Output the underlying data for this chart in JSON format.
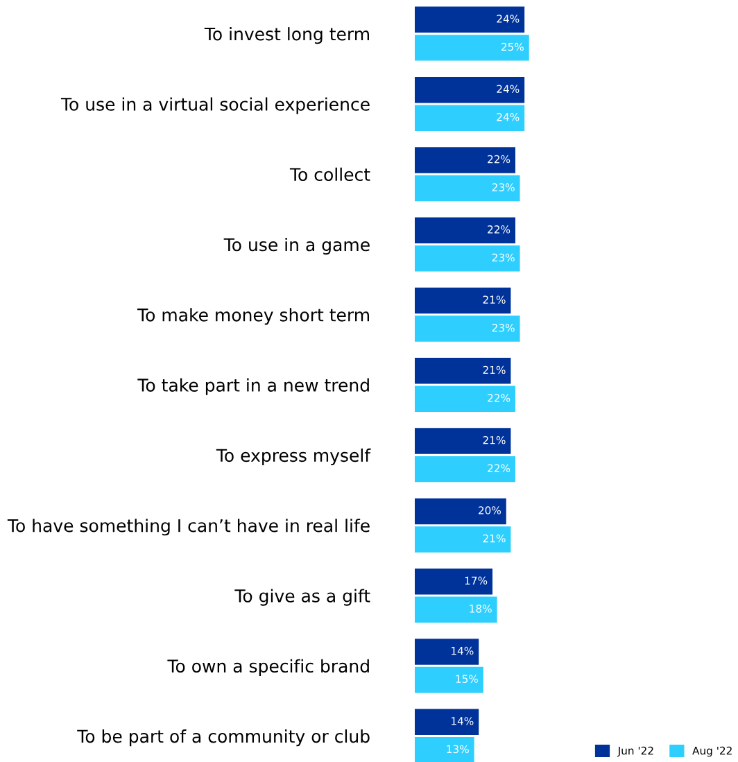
{
  "chart_data": {
    "type": "bar",
    "orientation": "horizontal",
    "categories": [
      "To invest long term",
      "To use in a virtual social experience",
      "To collect",
      "To use in a game",
      "To make money short term",
      "To take part in a new trend",
      "To express myself",
      "To have something I can’t have in real life",
      "To give as a gift",
      "To own a specific brand",
      "To be part of a community or club"
    ],
    "series": [
      {
        "name": "Jun '22",
        "color": "#00339a",
        "values": [
          24,
          24,
          22,
          22,
          21,
          21,
          21,
          20,
          17,
          14,
          14
        ],
        "value_labels": [
          "24%",
          "24%",
          "22%",
          "22%",
          "21%",
          "21%",
          "21%",
          "20%",
          "17%",
          "14%",
          "14%"
        ]
      },
      {
        "name": "Aug '22",
        "color": "#2ecfff",
        "values": [
          25,
          24,
          23,
          23,
          23,
          22,
          22,
          21,
          18,
          15,
          13
        ],
        "value_labels": [
          "25%",
          "24%",
          "23%",
          "23%",
          "23%",
          "22%",
          "22%",
          "21%",
          "18%",
          "15%",
          "13%"
        ]
      }
    ],
    "tick_labels": "y",
    "grid": false,
    "legend": "bottom right"
  }
}
